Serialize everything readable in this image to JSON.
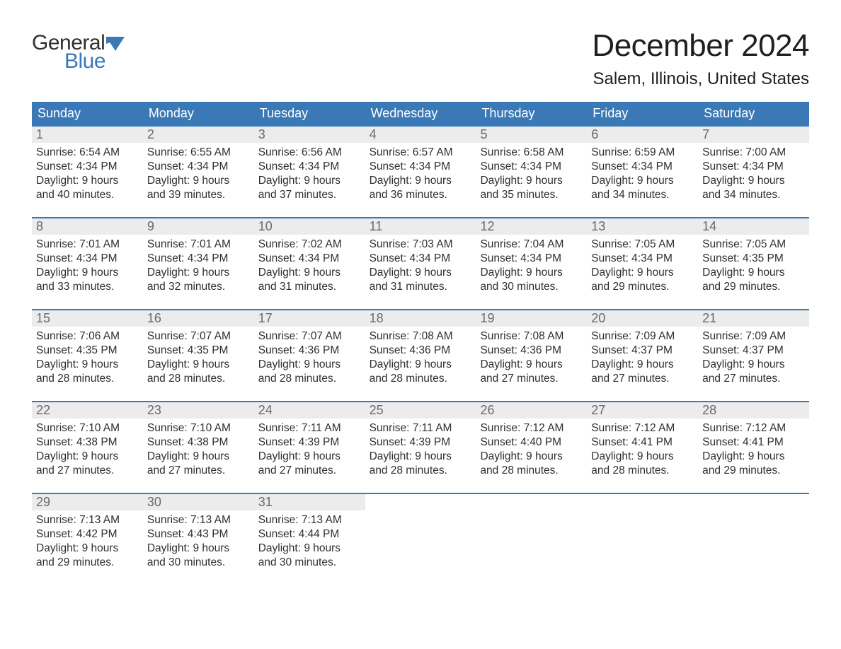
{
  "logo": {
    "word1": "General",
    "word2": "Blue",
    "flag_color": "#3a78b6",
    "text_dark": "#2f2f2f"
  },
  "title": "December 2024",
  "location": "Salem, Illinois, United States",
  "colors": {
    "header_bg": "#3a78b6",
    "header_text": "#ffffff",
    "week_border": "#3a78b6",
    "daynum_bg": "#ececec",
    "daynum_text": "#6a6a6a",
    "body_text": "#2f2f2f",
    "page_bg": "#ffffff"
  },
  "weekdays": [
    "Sunday",
    "Monday",
    "Tuesday",
    "Wednesday",
    "Thursday",
    "Friday",
    "Saturday"
  ],
  "weeks": [
    [
      {
        "n": "1",
        "sunrise": "6:54 AM",
        "sunset": "4:34 PM",
        "daylight": "9 hours and 40 minutes."
      },
      {
        "n": "2",
        "sunrise": "6:55 AM",
        "sunset": "4:34 PM",
        "daylight": "9 hours and 39 minutes."
      },
      {
        "n": "3",
        "sunrise": "6:56 AM",
        "sunset": "4:34 PM",
        "daylight": "9 hours and 37 minutes."
      },
      {
        "n": "4",
        "sunrise": "6:57 AM",
        "sunset": "4:34 PM",
        "daylight": "9 hours and 36 minutes."
      },
      {
        "n": "5",
        "sunrise": "6:58 AM",
        "sunset": "4:34 PM",
        "daylight": "9 hours and 35 minutes."
      },
      {
        "n": "6",
        "sunrise": "6:59 AM",
        "sunset": "4:34 PM",
        "daylight": "9 hours and 34 minutes."
      },
      {
        "n": "7",
        "sunrise": "7:00 AM",
        "sunset": "4:34 PM",
        "daylight": "9 hours and 34 minutes."
      }
    ],
    [
      {
        "n": "8",
        "sunrise": "7:01 AM",
        "sunset": "4:34 PM",
        "daylight": "9 hours and 33 minutes."
      },
      {
        "n": "9",
        "sunrise": "7:01 AM",
        "sunset": "4:34 PM",
        "daylight": "9 hours and 32 minutes."
      },
      {
        "n": "10",
        "sunrise": "7:02 AM",
        "sunset": "4:34 PM",
        "daylight": "9 hours and 31 minutes."
      },
      {
        "n": "11",
        "sunrise": "7:03 AM",
        "sunset": "4:34 PM",
        "daylight": "9 hours and 31 minutes."
      },
      {
        "n": "12",
        "sunrise": "7:04 AM",
        "sunset": "4:34 PM",
        "daylight": "9 hours and 30 minutes."
      },
      {
        "n": "13",
        "sunrise": "7:05 AM",
        "sunset": "4:34 PM",
        "daylight": "9 hours and 29 minutes."
      },
      {
        "n": "14",
        "sunrise": "7:05 AM",
        "sunset": "4:35 PM",
        "daylight": "9 hours and 29 minutes."
      }
    ],
    [
      {
        "n": "15",
        "sunrise": "7:06 AM",
        "sunset": "4:35 PM",
        "daylight": "9 hours and 28 minutes."
      },
      {
        "n": "16",
        "sunrise": "7:07 AM",
        "sunset": "4:35 PM",
        "daylight": "9 hours and 28 minutes."
      },
      {
        "n": "17",
        "sunrise": "7:07 AM",
        "sunset": "4:36 PM",
        "daylight": "9 hours and 28 minutes."
      },
      {
        "n": "18",
        "sunrise": "7:08 AM",
        "sunset": "4:36 PM",
        "daylight": "9 hours and 28 minutes."
      },
      {
        "n": "19",
        "sunrise": "7:08 AM",
        "sunset": "4:36 PM",
        "daylight": "9 hours and 27 minutes."
      },
      {
        "n": "20",
        "sunrise": "7:09 AM",
        "sunset": "4:37 PM",
        "daylight": "9 hours and 27 minutes."
      },
      {
        "n": "21",
        "sunrise": "7:09 AM",
        "sunset": "4:37 PM",
        "daylight": "9 hours and 27 minutes."
      }
    ],
    [
      {
        "n": "22",
        "sunrise": "7:10 AM",
        "sunset": "4:38 PM",
        "daylight": "9 hours and 27 minutes."
      },
      {
        "n": "23",
        "sunrise": "7:10 AM",
        "sunset": "4:38 PM",
        "daylight": "9 hours and 27 minutes."
      },
      {
        "n": "24",
        "sunrise": "7:11 AM",
        "sunset": "4:39 PM",
        "daylight": "9 hours and 27 minutes."
      },
      {
        "n": "25",
        "sunrise": "7:11 AM",
        "sunset": "4:39 PM",
        "daylight": "9 hours and 28 minutes."
      },
      {
        "n": "26",
        "sunrise": "7:12 AM",
        "sunset": "4:40 PM",
        "daylight": "9 hours and 28 minutes."
      },
      {
        "n": "27",
        "sunrise": "7:12 AM",
        "sunset": "4:41 PM",
        "daylight": "9 hours and 28 minutes."
      },
      {
        "n": "28",
        "sunrise": "7:12 AM",
        "sunset": "4:41 PM",
        "daylight": "9 hours and 29 minutes."
      }
    ],
    [
      {
        "n": "29",
        "sunrise": "7:13 AM",
        "sunset": "4:42 PM",
        "daylight": "9 hours and 29 minutes."
      },
      {
        "n": "30",
        "sunrise": "7:13 AM",
        "sunset": "4:43 PM",
        "daylight": "9 hours and 30 minutes."
      },
      {
        "n": "31",
        "sunrise": "7:13 AM",
        "sunset": "4:44 PM",
        "daylight": "9 hours and 30 minutes."
      },
      null,
      null,
      null,
      null
    ]
  ],
  "labels": {
    "sunrise": "Sunrise: ",
    "sunset": "Sunset: ",
    "daylight": "Daylight: "
  }
}
